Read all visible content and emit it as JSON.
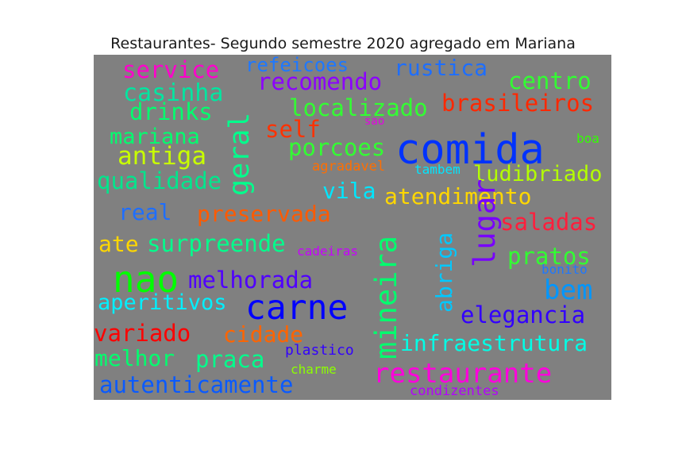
{
  "chart_data": {
    "type": "wordcloud",
    "title": "Restaurantes- Segundo semestre 2020 agregado em Mariana",
    "background": "#808080",
    "words": [
      {
        "text": "service",
        "color": "#ff00cc"
      },
      {
        "text": "refeicoes",
        "color": "#1e78ff"
      },
      {
        "text": "rustica",
        "color": "#1e6eff"
      },
      {
        "text": "casinha",
        "color": "#00e6a0"
      },
      {
        "text": "recomendo",
        "color": "#8c00ff"
      },
      {
        "text": "centro",
        "color": "#32ff32"
      },
      {
        "text": "drinks",
        "color": "#00ff6e"
      },
      {
        "text": "localizado",
        "color": "#32ff32"
      },
      {
        "text": "brasileiros",
        "color": "#ff2800"
      },
      {
        "text": "geral",
        "color": "#00ff8c"
      },
      {
        "text": "mariana",
        "color": "#00ff6e"
      },
      {
        "text": "self",
        "color": "#ff3200"
      },
      {
        "text": "sao",
        "color": "#e600e6"
      },
      {
        "text": "comida",
        "color": "#0032ff"
      },
      {
        "text": "boa",
        "color": "#32ff00"
      },
      {
        "text": "antiga",
        "color": "#c8ff00"
      },
      {
        "text": "porcoes",
        "color": "#32ff32"
      },
      {
        "text": "agradavel",
        "color": "#ff6e00"
      },
      {
        "text": "tambem",
        "color": "#00e6ff"
      },
      {
        "text": "ludibriado",
        "color": "#b4ff00"
      },
      {
        "text": "qualidade",
        "color": "#00e68c"
      },
      {
        "text": "vila",
        "color": "#00e6ff"
      },
      {
        "text": "atendimento",
        "color": "#ffd700"
      },
      {
        "text": "real",
        "color": "#1e6eff"
      },
      {
        "text": "preservada",
        "color": "#ff5a00"
      },
      {
        "text": "lugar",
        "color": "#7800ff"
      },
      {
        "text": "saladas",
        "color": "#ff1e3c"
      },
      {
        "text": "abriga",
        "color": "#00c8ff"
      },
      {
        "text": "mineira",
        "color": "#00ff6e"
      },
      {
        "text": "ate",
        "color": "#ffd700"
      },
      {
        "text": "surpreende",
        "color": "#00ff8c"
      },
      {
        "text": "cadeiras",
        "color": "#c800ff"
      },
      {
        "text": "pratos",
        "color": "#32ff32"
      },
      {
        "text": "nao",
        "color": "#00ff00"
      },
      {
        "text": "melhorada",
        "color": "#5000ff"
      },
      {
        "text": "bonito",
        "color": "#1e78ff"
      },
      {
        "text": "bem",
        "color": "#0096ff"
      },
      {
        "text": "aperitivos",
        "color": "#00f0ff"
      },
      {
        "text": "carne",
        "color": "#0000ff"
      },
      {
        "text": "elegancia",
        "color": "#3200ff"
      },
      {
        "text": "variado",
        "color": "#ff0000"
      },
      {
        "text": "cidade",
        "color": "#ff6400"
      },
      {
        "text": "infraestrutura",
        "color": "#00ffe6"
      },
      {
        "text": "melhor",
        "color": "#00ff6e"
      },
      {
        "text": "praca",
        "color": "#00ff8c"
      },
      {
        "text": "plastico",
        "color": "#3200ff"
      },
      {
        "text": "restaurante",
        "color": "#ff00dc"
      },
      {
        "text": "charme",
        "color": "#8cff00"
      },
      {
        "text": "autenticamente",
        "color": "#0a5aff"
      },
      {
        "text": "condizentes",
        "color": "#b400ff"
      }
    ]
  }
}
